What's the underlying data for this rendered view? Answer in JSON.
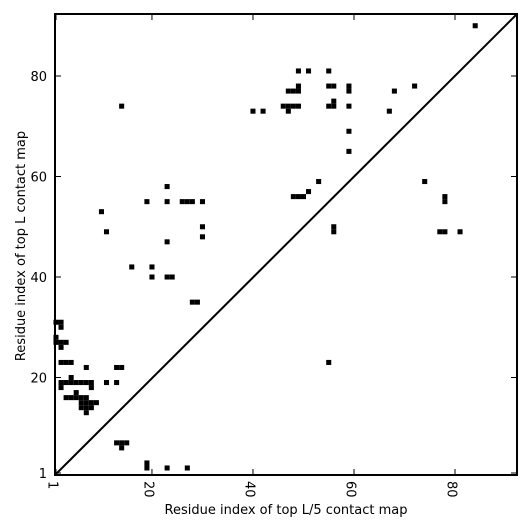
{
  "chart_data": {
    "type": "heatmap",
    "xlabel": "Residue index of top L/5 contact map",
    "ylabel": "Residue index of top L contact map",
    "xlim": [
      1,
      93
    ],
    "ylim": [
      1,
      93
    ],
    "x_ticks": [
      1,
      20,
      40,
      60,
      80
    ],
    "y_ticks": [
      1,
      20,
      40,
      60,
      80
    ],
    "grid": false,
    "mark_color": "#000000",
    "diagonal": true,
    "upper_points": [
      [
        84,
        90
      ],
      [
        72,
        78
      ],
      [
        68,
        77
      ],
      [
        49,
        81
      ],
      [
        51,
        81
      ],
      [
        55,
        81
      ],
      [
        55,
        78
      ],
      [
        56,
        78
      ],
      [
        59,
        78
      ],
      [
        59,
        77
      ],
      [
        47,
        77
      ],
      [
        48,
        77
      ],
      [
        49,
        77
      ],
      [
        49,
        78
      ],
      [
        46,
        74
      ],
      [
        47,
        74
      ],
      [
        48,
        74
      ],
      [
        49,
        74
      ],
      [
        47,
        73
      ],
      [
        55,
        74
      ],
      [
        56,
        74
      ],
      [
        56,
        75
      ],
      [
        59,
        74
      ],
      [
        40,
        73
      ],
      [
        42,
        73
      ],
      [
        67,
        73
      ],
      [
        14,
        74
      ],
      [
        59,
        69
      ],
      [
        59,
        65
      ],
      [
        53,
        59
      ],
      [
        74,
        59
      ],
      [
        51,
        57
      ],
      [
        48,
        56
      ],
      [
        49,
        56
      ],
      [
        50,
        56
      ],
      [
        78,
        56
      ],
      [
        78,
        55
      ],
      [
        56,
        50
      ],
      [
        56,
        49
      ],
      [
        77,
        49
      ],
      [
        78,
        49
      ],
      [
        81,
        49
      ]
    ],
    "lower_points": [
      [
        10,
        53
      ],
      [
        19,
        55
      ],
      [
        23,
        58
      ],
      [
        23,
        55
      ],
      [
        26,
        55
      ],
      [
        27,
        55
      ],
      [
        28,
        55
      ],
      [
        30,
        55
      ],
      [
        30,
        50
      ],
      [
        30,
        48
      ],
      [
        11,
        49
      ],
      [
        23,
        47
      ],
      [
        16,
        42
      ],
      [
        20,
        42
      ],
      [
        20,
        40
      ],
      [
        23,
        40
      ],
      [
        24,
        40
      ],
      [
        28,
        35
      ],
      [
        29,
        35
      ],
      [
        55,
        23
      ],
      [
        1,
        31
      ],
      [
        2,
        31
      ],
      [
        2,
        30
      ],
      [
        1,
        28
      ],
      [
        1,
        27
      ],
      [
        2,
        27
      ],
      [
        3,
        27
      ],
      [
        2,
        26
      ],
      [
        2,
        23
      ],
      [
        3,
        23
      ],
      [
        4,
        23
      ],
      [
        4,
        20
      ],
      [
        2,
        19
      ],
      [
        3,
        19
      ],
      [
        4,
        19
      ],
      [
        5,
        19
      ],
      [
        6,
        19
      ],
      [
        7,
        19
      ],
      [
        8,
        19
      ],
      [
        2,
        18
      ],
      [
        8,
        18
      ],
      [
        11,
        19
      ],
      [
        13,
        19
      ],
      [
        5,
        17
      ],
      [
        3,
        16
      ],
      [
        4,
        16
      ],
      [
        5,
        16
      ],
      [
        7,
        22
      ],
      [
        13,
        22
      ],
      [
        14,
        22
      ],
      [
        6,
        16
      ],
      [
        7,
        16
      ],
      [
        6,
        15
      ],
      [
        7,
        15
      ],
      [
        8,
        15
      ],
      [
        9,
        15
      ],
      [
        6,
        14
      ],
      [
        7,
        14
      ],
      [
        8,
        14
      ],
      [
        7,
        13
      ],
      [
        13,
        7
      ],
      [
        14,
        7
      ],
      [
        15,
        7
      ],
      [
        14,
        6
      ],
      [
        19,
        3
      ],
      [
        19,
        2
      ],
      [
        23,
        2
      ],
      [
        27,
        2
      ]
    ]
  }
}
